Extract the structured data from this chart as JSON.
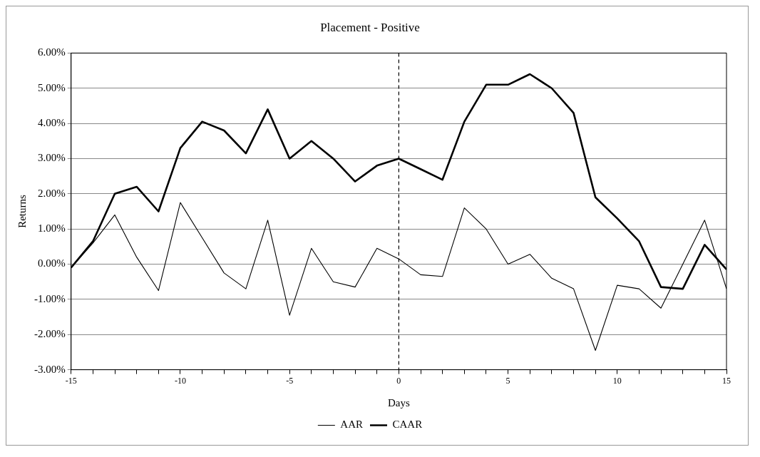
{
  "chart_data": {
    "type": "line",
    "title": "Placement - Positive",
    "xlabel": "Days",
    "ylabel": "Returns",
    "x": [
      -15,
      -14,
      -13,
      -12,
      -11,
      -10,
      -9,
      -8,
      -7,
      -6,
      -5,
      -4,
      -3,
      -2,
      -1,
      0,
      1,
      2,
      3,
      4,
      5,
      6,
      7,
      8,
      9,
      10,
      11,
      12,
      13,
      14,
      15
    ],
    "series": [
      {
        "name": "AAR",
        "color": "#000000",
        "values": [
          -0.1,
          0.6,
          1.4,
          0.2,
          -0.75,
          1.75,
          0.75,
          -0.25,
          -0.7,
          1.25,
          -1.45,
          0.45,
          -0.5,
          -0.65,
          0.45,
          0.15,
          -0.3,
          -0.35,
          1.6,
          1.0,
          0.0,
          0.28,
          -0.4,
          -0.7,
          -2.45,
          -0.6,
          -0.7,
          -1.25,
          0.0,
          1.25,
          -0.7
        ]
      },
      {
        "name": "CAAR",
        "color": "#000000",
        "values": [
          -0.1,
          0.65,
          2.0,
          2.2,
          1.5,
          3.3,
          4.05,
          3.8,
          3.15,
          4.4,
          3.0,
          3.5,
          3.0,
          2.35,
          2.8,
          3.0,
          2.7,
          2.4,
          4.05,
          5.1,
          5.1,
          5.4,
          5.0,
          4.3,
          1.9,
          1.3,
          0.65,
          -0.65,
          -0.7,
          0.55,
          -0.15
        ]
      }
    ],
    "xlim": [
      -15,
      15
    ],
    "xticks": [
      -15,
      {
        "value": -14,
        "label": null
      },
      {
        "value": -13,
        "label": null
      },
      {
        "value": -12,
        "label": null
      },
      {
        "value": -11,
        "label": null
      },
      -10,
      {
        "value": -9,
        "label": null
      },
      {
        "value": -8,
        "label": null
      },
      {
        "value": -7,
        "label": null
      },
      {
        "value": -6,
        "label": null
      },
      -5,
      {
        "value": -4,
        "label": null
      },
      {
        "value": -3,
        "label": null
      },
      {
        "value": -2,
        "label": null
      },
      {
        "value": -1,
        "label": null
      },
      0,
      {
        "value": 1,
        "label": null
      },
      {
        "value": 2,
        "label": null
      },
      {
        "value": 3,
        "label": null
      },
      {
        "value": 4,
        "label": null
      },
      5,
      {
        "value": 6,
        "label": null
      },
      {
        "value": 7,
        "label": null
      },
      {
        "value": 8,
        "label": null
      },
      {
        "value": 9,
        "label": null
      },
      10,
      {
        "value": 11,
        "label": null
      },
      {
        "value": 12,
        "label": null
      },
      {
        "value": 13,
        "label": null
      },
      {
        "value": 14,
        "label": null
      },
      15
    ],
    "ylim": [
      -3,
      6
    ],
    "yticks": [
      {
        "value": -3,
        "label": "-3.00%"
      },
      {
        "value": -2,
        "label": "-2.00%"
      },
      {
        "value": -1,
        "label": "-1.00%"
      },
      {
        "value": 0,
        "label": "0.00%"
      },
      {
        "value": 1,
        "label": "1.00%"
      },
      {
        "value": 2,
        "label": "2.00%"
      },
      {
        "value": 3,
        "label": "3.00%"
      },
      {
        "value": 4,
        "label": "4.00%"
      },
      {
        "value": 5,
        "label": "5.00%"
      },
      {
        "value": 6,
        "label": "6.00%"
      }
    ],
    "grid": "y",
    "legend": "bottom",
    "marker": "none",
    "line_style": "solid",
    "ref_lines": [
      {
        "axis": "x",
        "value": 0,
        "line_style": "dashed",
        "color": "#000000"
      }
    ]
  }
}
